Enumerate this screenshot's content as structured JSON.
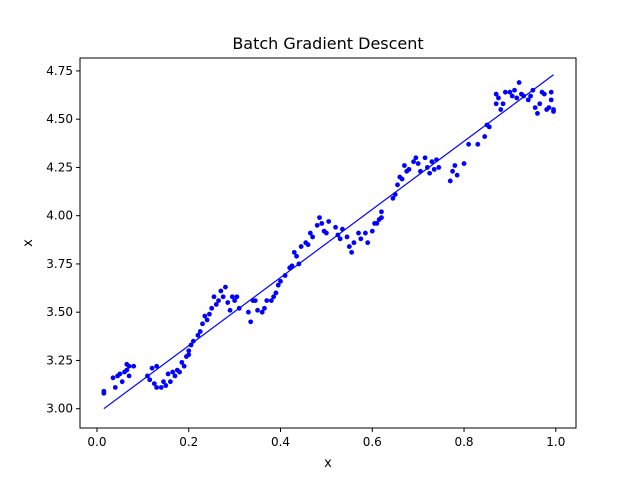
{
  "chart_data": {
    "type": "scatter",
    "title": "Batch Gradient Descent",
    "xlabel": "x",
    "ylabel": "x",
    "xlim": [
      -0.037,
      1.044
    ],
    "ylim": [
      2.9,
      4.817
    ],
    "xticks": [
      "0.0",
      "0.2",
      "0.4",
      "0.6",
      "0.8",
      "1.0"
    ],
    "yticks": [
      "3.00",
      "3.25",
      "3.50",
      "3.75",
      "4.00",
      "4.25",
      "4.50",
      "4.75"
    ],
    "grid": false,
    "colors": {
      "points": "#0000ff",
      "line": "#0000ff"
    },
    "fit_line": {
      "x": [
        0.015,
        0.995
      ],
      "y": [
        3.0,
        4.73
      ]
    },
    "points": [
      [
        0.015,
        3.08
      ],
      [
        0.015,
        3.09
      ],
      [
        0.035,
        3.16
      ],
      [
        0.04,
        3.11
      ],
      [
        0.045,
        3.17
      ],
      [
        0.05,
        3.18
      ],
      [
        0.055,
        3.14
      ],
      [
        0.06,
        3.19
      ],
      [
        0.065,
        3.23
      ],
      [
        0.065,
        3.2
      ],
      [
        0.07,
        3.17
      ],
      [
        0.07,
        3.22
      ],
      [
        0.08,
        3.22
      ],
      [
        0.11,
        3.17
      ],
      [
        0.115,
        3.15
      ],
      [
        0.12,
        3.21
      ],
      [
        0.125,
        3.13
      ],
      [
        0.13,
        3.22
      ],
      [
        0.13,
        3.11
      ],
      [
        0.14,
        3.11
      ],
      [
        0.145,
        3.14
      ],
      [
        0.15,
        3.12
      ],
      [
        0.155,
        3.18
      ],
      [
        0.16,
        3.14
      ],
      [
        0.165,
        3.19
      ],
      [
        0.17,
        3.17
      ],
      [
        0.175,
        3.2
      ],
      [
        0.18,
        3.19
      ],
      [
        0.185,
        3.24
      ],
      [
        0.19,
        3.22
      ],
      [
        0.195,
        3.27
      ],
      [
        0.2,
        3.3
      ],
      [
        0.2,
        3.28
      ],
      [
        0.205,
        3.33
      ],
      [
        0.21,
        3.35
      ],
      [
        0.22,
        3.38
      ],
      [
        0.225,
        3.4
      ],
      [
        0.23,
        3.44
      ],
      [
        0.235,
        3.48
      ],
      [
        0.24,
        3.46
      ],
      [
        0.245,
        3.49
      ],
      [
        0.25,
        3.52
      ],
      [
        0.255,
        3.58
      ],
      [
        0.26,
        3.54
      ],
      [
        0.265,
        3.56
      ],
      [
        0.27,
        3.61
      ],
      [
        0.275,
        3.58
      ],
      [
        0.28,
        3.63
      ],
      [
        0.285,
        3.55
      ],
      [
        0.29,
        3.51
      ],
      [
        0.295,
        3.58
      ],
      [
        0.3,
        3.56
      ],
      [
        0.305,
        3.58
      ],
      [
        0.31,
        3.52
      ],
      [
        0.33,
        3.5
      ],
      [
        0.335,
        3.45
      ],
      [
        0.34,
        3.56
      ],
      [
        0.345,
        3.56
      ],
      [
        0.35,
        3.51
      ],
      [
        0.36,
        3.5
      ],
      [
        0.365,
        3.52
      ],
      [
        0.37,
        3.56
      ],
      [
        0.38,
        3.56
      ],
      [
        0.385,
        3.58
      ],
      [
        0.39,
        3.6
      ],
      [
        0.395,
        3.64
      ],
      [
        0.4,
        3.66
      ],
      [
        0.41,
        3.69
      ],
      [
        0.42,
        3.73
      ],
      [
        0.425,
        3.74
      ],
      [
        0.43,
        3.81
      ],
      [
        0.435,
        3.79
      ],
      [
        0.44,
        3.75
      ],
      [
        0.445,
        3.84
      ],
      [
        0.455,
        3.86
      ],
      [
        0.46,
        3.85
      ],
      [
        0.465,
        3.91
      ],
      [
        0.47,
        3.89
      ],
      [
        0.48,
        3.95
      ],
      [
        0.485,
        3.99
      ],
      [
        0.49,
        3.96
      ],
      [
        0.495,
        3.92
      ],
      [
        0.5,
        3.91
      ],
      [
        0.505,
        3.97
      ],
      [
        0.52,
        3.94
      ],
      [
        0.525,
        3.9
      ],
      [
        0.53,
        3.88
      ],
      [
        0.535,
        3.93
      ],
      [
        0.545,
        3.89
      ],
      [
        0.55,
        3.84
      ],
      [
        0.555,
        3.81
      ],
      [
        0.56,
        3.86
      ],
      [
        0.57,
        3.91
      ],
      [
        0.575,
        3.88
      ],
      [
        0.585,
        3.91
      ],
      [
        0.59,
        3.86
      ],
      [
        0.6,
        3.92
      ],
      [
        0.605,
        3.96
      ],
      [
        0.61,
        3.96
      ],
      [
        0.615,
        3.98
      ],
      [
        0.62,
        4.02
      ],
      [
        0.62,
        3.99
      ],
      [
        0.645,
        4.09
      ],
      [
        0.65,
        4.11
      ],
      [
        0.655,
        4.16
      ],
      [
        0.66,
        4.2
      ],
      [
        0.665,
        4.19
      ],
      [
        0.67,
        4.26
      ],
      [
        0.675,
        4.23
      ],
      [
        0.68,
        4.24
      ],
      [
        0.69,
        4.28
      ],
      [
        0.695,
        4.3
      ],
      [
        0.7,
        4.27
      ],
      [
        0.705,
        4.23
      ],
      [
        0.715,
        4.3
      ],
      [
        0.72,
        4.25
      ],
      [
        0.725,
        4.22
      ],
      [
        0.73,
        4.28
      ],
      [
        0.735,
        4.24
      ],
      [
        0.74,
        4.29
      ],
      [
        0.745,
        4.25
      ],
      [
        0.77,
        4.18
      ],
      [
        0.775,
        4.23
      ],
      [
        0.78,
        4.26
      ],
      [
        0.785,
        4.21
      ],
      [
        0.8,
        4.27
      ],
      [
        0.81,
        4.37
      ],
      [
        0.83,
        4.37
      ],
      [
        0.845,
        4.41
      ],
      [
        0.85,
        4.47
      ],
      [
        0.855,
        4.46
      ],
      [
        0.87,
        4.63
      ],
      [
        0.87,
        4.58
      ],
      [
        0.875,
        4.61
      ],
      [
        0.88,
        4.55
      ],
      [
        0.885,
        4.58
      ],
      [
        0.89,
        4.64
      ],
      [
        0.9,
        4.64
      ],
      [
        0.905,
        4.62
      ],
      [
        0.91,
        4.65
      ],
      [
        0.915,
        4.61
      ],
      [
        0.92,
        4.69
      ],
      [
        0.925,
        4.63
      ],
      [
        0.93,
        4.62
      ],
      [
        0.94,
        4.6
      ],
      [
        0.945,
        4.62
      ],
      [
        0.95,
        4.65
      ],
      [
        0.955,
        4.56
      ],
      [
        0.96,
        4.53
      ],
      [
        0.965,
        4.58
      ],
      [
        0.97,
        4.64
      ],
      [
        0.975,
        4.63
      ],
      [
        0.98,
        4.55
      ],
      [
        0.985,
        4.56
      ],
      [
        0.99,
        4.6
      ],
      [
        0.99,
        4.64
      ],
      [
        0.995,
        4.55
      ],
      [
        0.995,
        4.54
      ]
    ]
  }
}
